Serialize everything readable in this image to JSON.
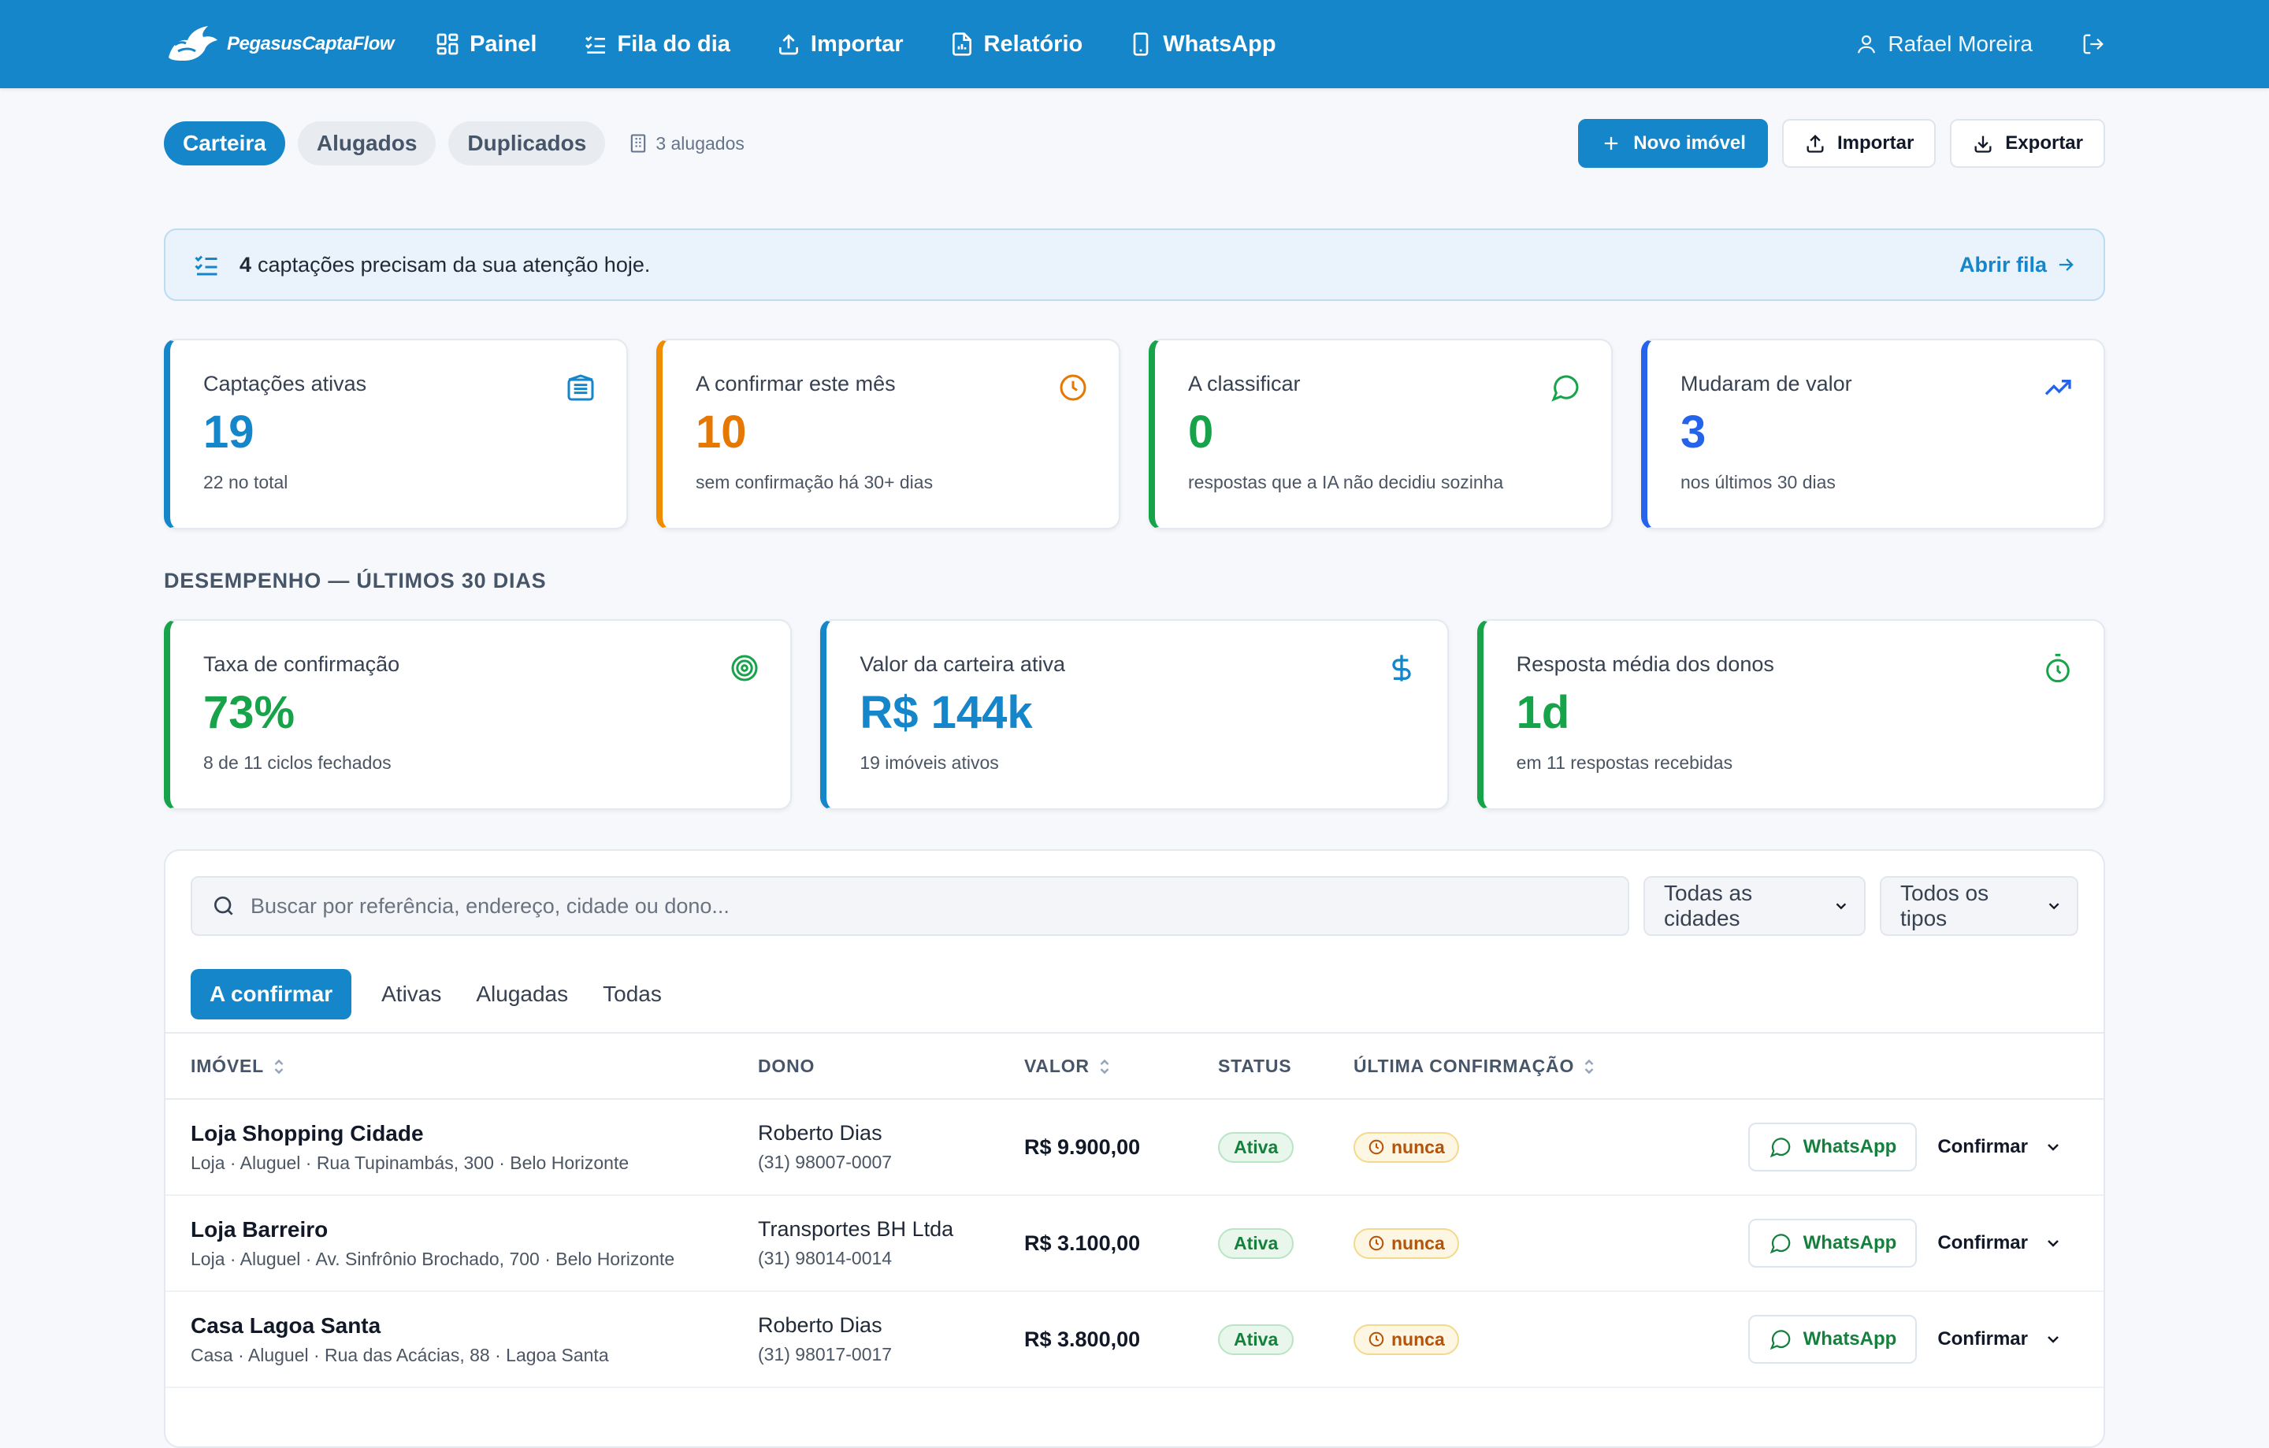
{
  "brand": {
    "name": "PegasusCaptaFlow"
  },
  "nav": [
    {
      "label": "Painel",
      "icon": "dashboard-icon"
    },
    {
      "label": "Fila do dia",
      "icon": "list-checks-icon"
    },
    {
      "label": "Importar",
      "icon": "upload-icon"
    },
    {
      "label": "Relatório",
      "icon": "report-icon"
    },
    {
      "label": "WhatsApp",
      "icon": "phone-icon"
    }
  ],
  "user": {
    "name": "Rafael Moreira"
  },
  "tabs": {
    "carteira": "Carteira",
    "alugados": "Alugados",
    "duplicados": "Duplicados"
  },
  "rented_info": "3 alugados",
  "actions": {
    "new": "Novo imóvel",
    "import": "Importar",
    "export": "Exportar"
  },
  "alert": {
    "count": "4",
    "text": "captações precisam da sua atenção hoje.",
    "link": "Abrir fila"
  },
  "stats": [
    {
      "label": "Captações ativas",
      "value": "19",
      "sub": "22 no total",
      "color": "#1586c9",
      "icon": "building-icon"
    },
    {
      "label": "A confirmar este mês",
      "value": "10",
      "sub": "sem confirmação há 30+ dias",
      "color": "#f08c00",
      "icon": "clock-icon"
    },
    {
      "label": "A classificar",
      "value": "0",
      "sub": "respostas que a IA não decidiu sozinha",
      "color": "#16a34a",
      "icon": "chat-icon"
    },
    {
      "label": "Mudaram de valor",
      "value": "3",
      "sub": "nos últimos 30 dias",
      "color": "#2563eb",
      "icon": "trending-up-icon"
    }
  ],
  "performance": {
    "title": "DESEMPENHO — ÚLTIMOS 30 DIAS",
    "cards": [
      {
        "label": "Taxa de confirmação",
        "value": "73%",
        "sub": "8 de 11 ciclos fechados",
        "color": "#16a34a",
        "icon": "target-icon"
      },
      {
        "label": "Valor da carteira ativa",
        "value": "R$ 144k",
        "sub": "19 imóveis ativos",
        "color": "#1586c9",
        "icon": "dollar-icon"
      },
      {
        "label": "Resposta média dos donos",
        "value": "1d",
        "sub": "em 11 respostas recebidas",
        "color": "#16a34a",
        "icon": "stopwatch-icon"
      }
    ]
  },
  "filters": {
    "search_placeholder": "Buscar por referência, endereço, cidade ou dono...",
    "city": "Todas as cidades",
    "type": "Todos os tipos"
  },
  "subtabs": [
    "A confirmar",
    "Ativas",
    "Alugadas",
    "Todas"
  ],
  "table": {
    "headers": {
      "property": "IMÓVEL",
      "owner": "DONO",
      "value": "VALOR",
      "status": "STATUS",
      "last": "ÚLTIMA CONFIRMAÇÃO"
    },
    "rows": [
      {
        "title": "Loja Shopping Cidade",
        "meta": "Loja · Aluguel · Rua Tupinambás, 300 · Belo Horizonte",
        "owner": "Roberto Dias",
        "phone": "(31) 98007-0007",
        "price": "R$ 9.900,00",
        "status": "Ativa",
        "last": "nunca",
        "whatsapp": "WhatsApp",
        "confirm": "Confirmar"
      },
      {
        "title": "Loja Barreiro",
        "meta": "Loja · Aluguel · Av. Sinfrônio Brochado, 700 · Belo Horizonte",
        "owner": "Transportes BH Ltda",
        "phone": "(31) 98014-0014",
        "price": "R$ 3.100,00",
        "status": "Ativa",
        "last": "nunca",
        "whatsapp": "WhatsApp",
        "confirm": "Confirmar"
      },
      {
        "title": "Casa Lagoa Santa",
        "meta": "Casa · Aluguel · Rua das Acácias, 88 · Lagoa Santa",
        "owner": "Roberto Dias",
        "phone": "(31) 98017-0017",
        "price": "R$ 3.800,00",
        "status": "Ativa",
        "last": "nunca",
        "whatsapp": "WhatsApp",
        "confirm": "Confirmar"
      }
    ]
  }
}
